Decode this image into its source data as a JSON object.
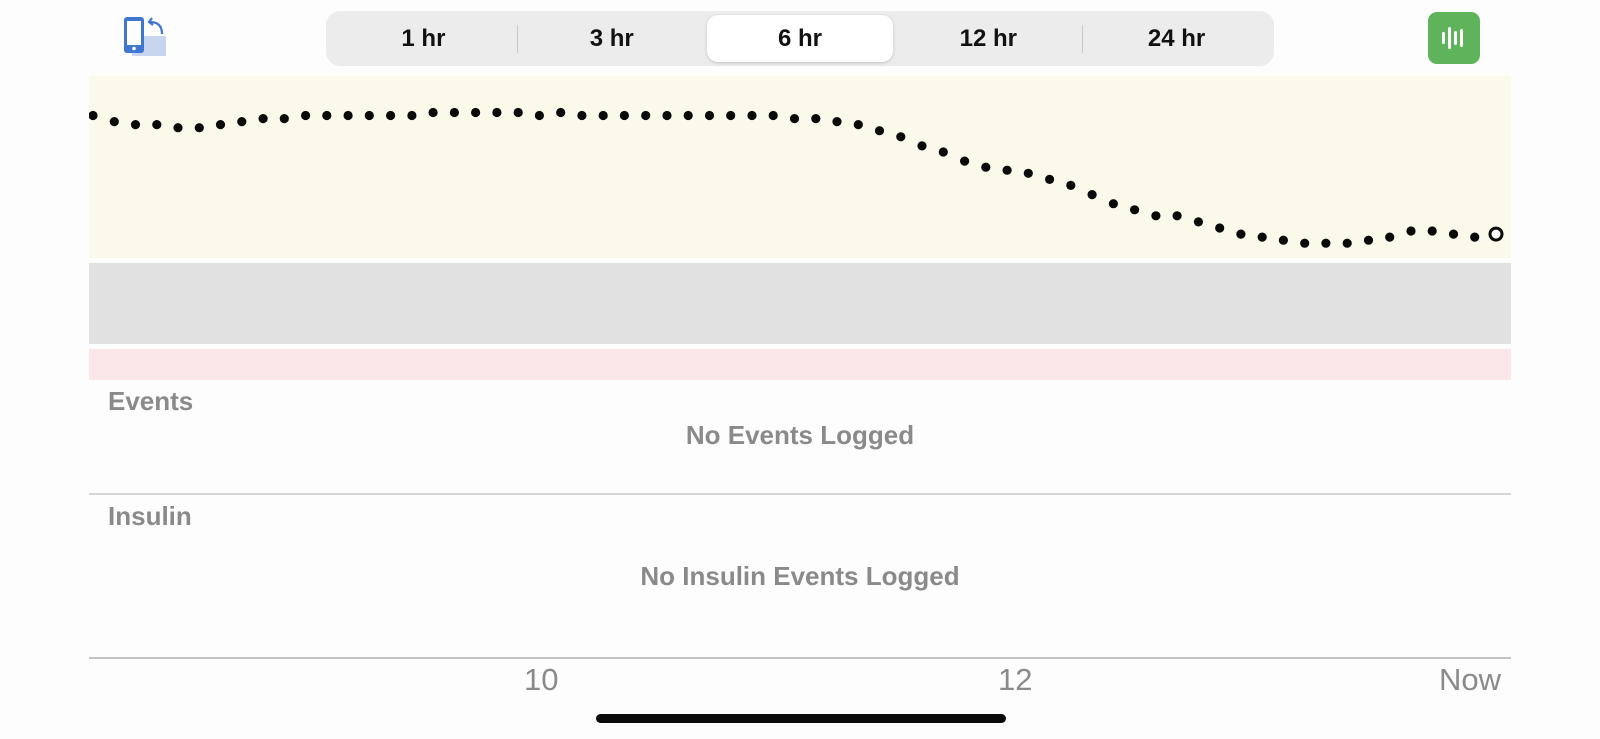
{
  "header": {
    "range_options": [
      "1 hr",
      "3 hr",
      "6 hr",
      "12 hr",
      "24 hr"
    ],
    "selected_range": "6 hr",
    "accent_color": "#5fb35a"
  },
  "events": {
    "label": "Events",
    "empty_message": "No Events Logged"
  },
  "insulin": {
    "label": "Insulin",
    "empty_message": "No Insulin Events Logged"
  },
  "time_axis": {
    "ticks": [
      "10",
      "12",
      "Now"
    ]
  },
  "chart_data": {
    "type": "scatter",
    "bands": [
      {
        "level": "high",
        "color": "#fbf9ea"
      },
      {
        "level": "in-range",
        "color": "#e1e1e1"
      },
      {
        "level": "low",
        "color": "#fbe7e7"
      }
    ],
    "point_color": "#0a0a0a",
    "latest_point_style": "hollow circle",
    "series": [
      {
        "values": [
          0.87,
          0.85,
          0.84,
          0.84,
          0.83,
          0.83,
          0.84,
          0.85,
          0.86,
          0.86,
          0.87,
          0.87,
          0.87,
          0.87,
          0.87,
          0.87,
          0.88,
          0.88,
          0.88,
          0.88,
          0.88,
          0.87,
          0.88,
          0.87,
          0.87,
          0.87,
          0.87,
          0.87,
          0.87,
          0.87,
          0.87,
          0.87,
          0.87,
          0.86,
          0.86,
          0.85,
          0.84,
          0.82,
          0.8,
          0.77,
          0.75,
          0.72,
          0.7,
          0.69,
          0.68,
          0.66,
          0.64,
          0.61,
          0.58,
          0.56,
          0.54,
          0.54,
          0.52,
          0.5,
          0.48,
          0.47,
          0.46,
          0.45,
          0.45,
          0.45,
          0.46,
          0.47,
          0.49,
          0.49,
          0.48,
          0.47,
          0.48
        ]
      }
    ]
  }
}
